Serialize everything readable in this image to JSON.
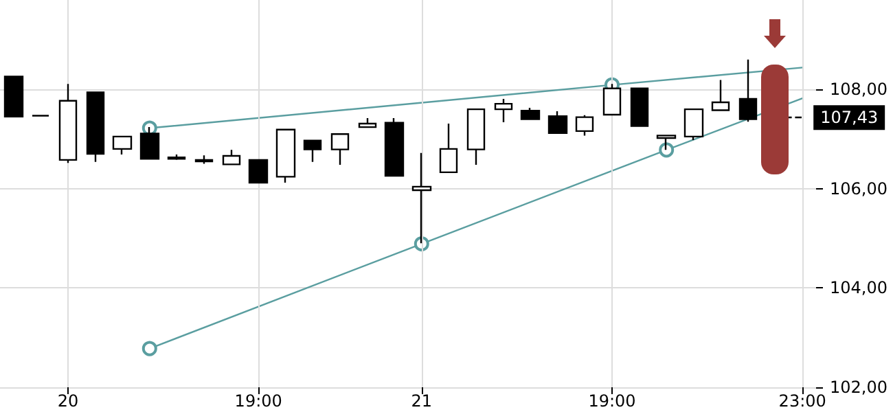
{
  "chart_data": {
    "type": "candlestick",
    "categories": [
      null,
      null,
      "20",
      null,
      null,
      null,
      null,
      null,
      null,
      "19:00",
      null,
      null,
      null,
      null,
      null,
      "21",
      null,
      null,
      null,
      null,
      null,
      null,
      "19:00",
      null,
      null,
      null,
      null,
      null,
      null,
      "23:00"
    ],
    "ohlc": [
      [
        108.26,
        108.26,
        107.45,
        107.45
      ],
      [
        107.47,
        107.47,
        107.47,
        107.47
      ],
      [
        106.58,
        108.11,
        106.52,
        107.77
      ],
      [
        107.94,
        107.94,
        106.54,
        106.7
      ],
      [
        106.8,
        107.05,
        106.69,
        107.05
      ],
      [
        107.11,
        107.24,
        106.6,
        106.6
      ],
      [
        106.63,
        106.69,
        106.58,
        106.6
      ],
      [
        106.58,
        106.67,
        106.5,
        106.55
      ],
      [
        106.49,
        106.78,
        106.49,
        106.66
      ],
      [
        106.58,
        106.58,
        106.12,
        106.12
      ],
      [
        106.24,
        107.19,
        106.12,
        107.19
      ],
      [
        106.97,
        106.97,
        106.54,
        106.79
      ],
      [
        106.79,
        107.1,
        106.48,
        107.1
      ],
      [
        107.24,
        107.42,
        107.24,
        107.31
      ],
      [
        107.33,
        107.42,
        106.26,
        106.26
      ],
      [
        105.97,
        106.72,
        104.9,
        106.04
      ],
      [
        106.33,
        107.31,
        106.33,
        106.8
      ],
      [
        106.79,
        107.6,
        106.48,
        107.6
      ],
      [
        107.6,
        107.81,
        107.34,
        107.71
      ],
      [
        107.57,
        107.63,
        107.4,
        107.4
      ],
      [
        107.46,
        107.56,
        107.12,
        107.12
      ],
      [
        107.16,
        107.48,
        107.07,
        107.44
      ],
      [
        107.49,
        108.11,
        107.49,
        108.02
      ],
      [
        108.02,
        108.02,
        107.26,
        107.26
      ],
      [
        107.02,
        107.07,
        106.78,
        107.07
      ],
      [
        107.05,
        107.6,
        106.98,
        107.6
      ],
      [
        107.58,
        108.19,
        107.58,
        107.74
      ],
      [
        107.81,
        108.6,
        107.35,
        107.4
      ],
      null,
      null
    ],
    "series": [
      {
        "type": "line",
        "color": "#5a9ea0",
        "marker": "circle",
        "values": [
          null,
          null,
          null,
          null,
          null,
          107.22,
          null,
          null,
          null,
          null,
          null,
          null,
          null,
          null,
          null,
          null,
          null,
          null,
          null,
          null,
          null,
          null,
          108.09,
          null,
          null,
          null,
          null,
          null,
          null,
          108.44
        ]
      },
      {
        "type": "line",
        "color": "#5a9ea0",
        "marker": "circle",
        "values": [
          null,
          null,
          null,
          null,
          null,
          102.78,
          null,
          null,
          null,
          null,
          null,
          null,
          null,
          null,
          null,
          104.89,
          null,
          null,
          null,
          null,
          null,
          null,
          null,
          null,
          106.78,
          null,
          null,
          null,
          null,
          107.82
        ]
      }
    ],
    "ylim": [
      102,
      109.8
    ],
    "yticks": [
      {
        "value": 102,
        "label": "102,00"
      },
      {
        "value": 104,
        "label": "104,00"
      },
      {
        "value": 106,
        "label": "106,00"
      },
      {
        "value": 108,
        "label": "108,00"
      }
    ],
    "ref_lines": [
      {
        "axis": "y",
        "value": 107.43,
        "label": "107,43",
        "line_style": "dashed",
        "color": "#000000"
      }
    ],
    "grid": true
  }
}
